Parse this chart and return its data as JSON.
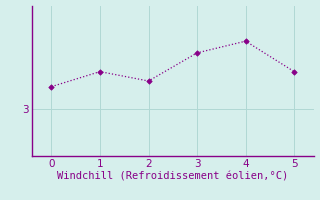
{
  "x": [
    0,
    1,
    2,
    3,
    4,
    5
  ],
  "y": [
    3.48,
    3.8,
    3.6,
    4.2,
    4.45,
    3.8
  ],
  "line_color": "#880088",
  "marker_color": "#880088",
  "background_color": "#d6efec",
  "grid_color": "#b0d8d4",
  "spine_color": "#880088",
  "xlabel": "Windchill (Refroidissement éolien,°C)",
  "xlabel_color": "#880088",
  "ytick_val": 3,
  "xlim": [
    -0.4,
    5.4
  ],
  "ylim": [
    2.0,
    5.2
  ],
  "yticks": [
    3
  ],
  "xticks": [
    0,
    1,
    2,
    3,
    4,
    5
  ],
  "tick_color": "#880088",
  "xlabel_fontsize": 7.5,
  "tick_fontsize": 7.5,
  "linewidth": 0.9,
  "markersize": 2.8
}
